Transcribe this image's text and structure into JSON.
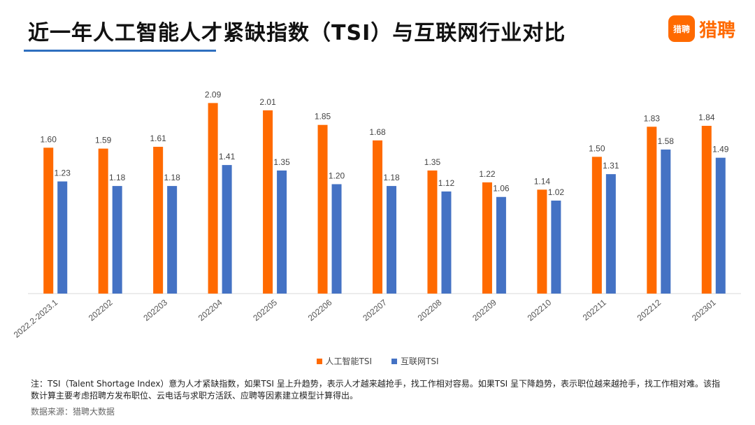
{
  "header": {
    "title": "近一年人工智能人才紧缺指数（TSI）与互联网行业对比",
    "logo_mark": "猎聘",
    "logo_text": "猎聘"
  },
  "chart_data": {
    "type": "bar",
    "categories": [
      "2022.2-2023.1",
      "202202",
      "202203",
      "202204",
      "202205",
      "202206",
      "202207",
      "202208",
      "202209",
      "202210",
      "202211",
      "202212",
      "202301"
    ],
    "series": [
      {
        "name": "人工智能TSI",
        "color": "#ff6a00",
        "values": [
          1.6,
          1.59,
          1.61,
          2.09,
          2.01,
          1.85,
          1.68,
          1.35,
          1.22,
          1.14,
          1.5,
          1.83,
          1.84
        ]
      },
      {
        "name": "互联网TSI",
        "color": "#4472c4",
        "values": [
          1.23,
          1.18,
          1.18,
          1.41,
          1.35,
          1.2,
          1.18,
          1.12,
          1.06,
          1.02,
          1.31,
          1.58,
          1.49
        ]
      }
    ],
    "ylim": [
      0,
      2.3
    ],
    "grid": false,
    "legend_position": "bottom"
  },
  "footer": {
    "note": "注：TSI（Talent Shortage Index）意为人才紧缺指数，如果TSI 呈上升趋势，表示人才越来越抢手，找工作相对容易。如果TSI 呈下降趋势，表示职位越来越抢手，找工作相对难。该指数计算主要考虑招聘方发布职位、云电话与求职方活跃、应聘等因素建立模型计算得出。",
    "source": "数据来源：猎聘大数据"
  }
}
